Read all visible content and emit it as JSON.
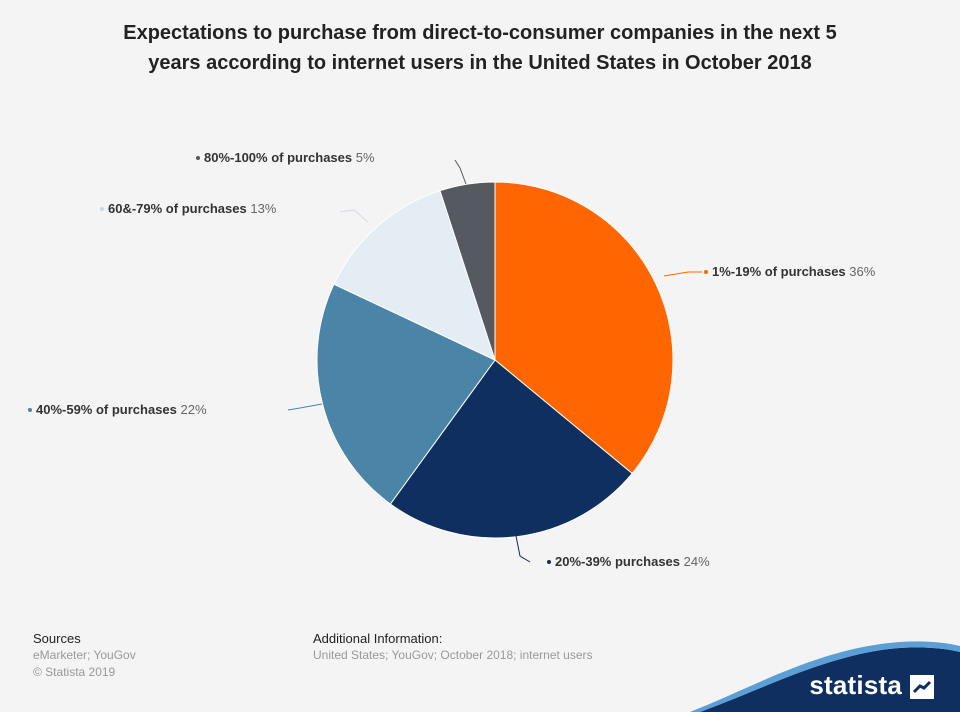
{
  "title": {
    "line1": "Expectations to purchase from direct-to-consumer companies in the next 5",
    "line2": "years according to internet users in the United States in October 2018"
  },
  "chart_data": {
    "type": "pie",
    "slices": [
      {
        "label": "1%-19% of purchases",
        "value": 36,
        "value_label": "36%",
        "color": "#ff6600"
      },
      {
        "label": "20%-39% purchases",
        "value": 24,
        "value_label": "24%",
        "color": "#0e2f5f"
      },
      {
        "label": "40%-59% of purchases",
        "value": 22,
        "value_label": "22%",
        "color": "#4a84a6"
      },
      {
        "label": "60&-79% of purchases",
        "value": 13,
        "value_label": "13%",
        "color": "#e4edf3"
      },
      {
        "label": "80%-100% of purchases",
        "value": 5,
        "value_label": "5%",
        "color": "#555a60"
      }
    ]
  },
  "footer": {
    "sources_heading": "Sources",
    "sources_line1": "eMarketer; YouGov",
    "sources_line2": "© Statista 2019",
    "additional_heading": "Additional Information:",
    "additional_text": "United States; YouGov; October 2018; internet users"
  },
  "brand": {
    "name": "statista",
    "color": "#0e2f5f"
  }
}
